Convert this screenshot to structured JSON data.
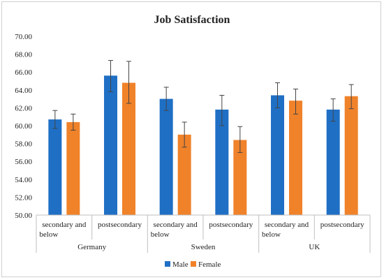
{
  "chart_data": {
    "type": "bar",
    "title": "Job Satisfaction",
    "xlabel": "",
    "ylabel": "",
    "ylim": [
      50,
      70
    ],
    "ytick_step": 2,
    "ytick_labels": [
      "50.00",
      "52.00",
      "54.00",
      "56.00",
      "58.00",
      "60.00",
      "62.00",
      "64.00",
      "66.00",
      "68.00",
      "70.00"
    ],
    "grid": false,
    "legend_position": "bottom",
    "groups": [
      {
        "label": "Germany",
        "categories": [
          "secondary and below",
          "postsecondary"
        ]
      },
      {
        "label": "Sweden",
        "categories": [
          "secondary and below",
          "postsecondary"
        ]
      },
      {
        "label": "UK",
        "categories": [
          "secondary and below",
          "postsecondary"
        ]
      }
    ],
    "categories": [
      [
        "secondary and",
        "below"
      ],
      [
        "postsecondary"
      ],
      [
        "secondary and",
        "below"
      ],
      [
        "postsecondary"
      ],
      [
        "secondary and",
        "below"
      ],
      [
        "postsecondary"
      ]
    ],
    "series": [
      {
        "name": "Male",
        "color": "#1f6fc5",
        "values": [
          60.7,
          65.6,
          63.0,
          61.8,
          63.4,
          61.8
        ],
        "error_low": [
          59.7,
          63.8,
          61.7,
          60.0,
          62.0,
          60.5
        ],
        "error_high": [
          61.7,
          67.3,
          64.3,
          63.4,
          64.8,
          63.0
        ]
      },
      {
        "name": "Female",
        "color": "#f0822a",
        "values": [
          60.4,
          64.8,
          59.0,
          58.4,
          62.8,
          63.3
        ],
        "error_low": [
          59.5,
          62.5,
          57.6,
          57.0,
          61.3,
          61.9
        ],
        "error_high": [
          61.3,
          67.2,
          60.4,
          59.9,
          64.1,
          64.6
        ]
      }
    ]
  }
}
